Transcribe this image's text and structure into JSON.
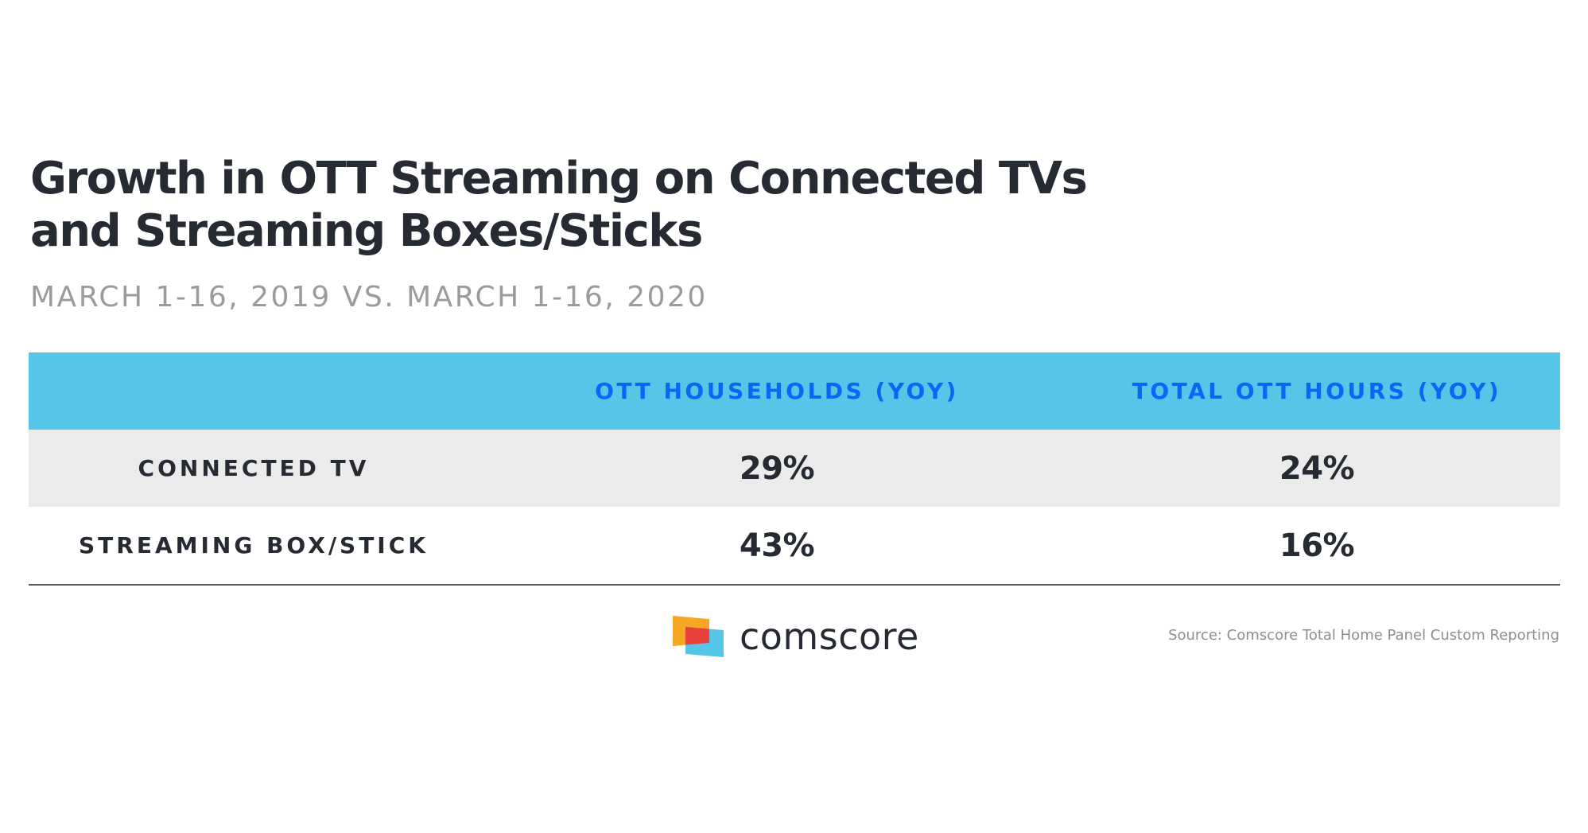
{
  "chart_data": {
    "type": "table",
    "title": "Growth in OTT Streaming on Connected TVs and Streaming Boxes/Sticks",
    "title_lines": [
      "Growth in OTT Streaming on Connected TVs",
      "and Streaming Boxes/Sticks"
    ],
    "subtitle": "MARCH 1-16, 2019 VS. MARCH 1-16, 2020",
    "columns": [
      "",
      "OTT HOUSEHOLDS (YOY)",
      "TOTAL OTT HOURS (YOY)"
    ],
    "rows": [
      {
        "label": "CONNECTED TV",
        "values": [
          "29%",
          "24%"
        ]
      },
      {
        "label": "STREAMING BOX/STICK",
        "values": [
          "43%",
          "16%"
        ]
      }
    ],
    "source": "Source: Comscore Total Home Panel Custom Reporting"
  },
  "branding": {
    "logo_text": "comscore",
    "logo_icon": "comscore-flag-icon"
  },
  "colors": {
    "header_bg": "#55c5e8",
    "header_text": "#0a66f5",
    "shaded_row": "#ebebeb",
    "text_dark": "#262a33",
    "subtitle": "#9b9b9b",
    "logo_orange": "#f5a623",
    "logo_red": "#e8403a",
    "logo_blue": "#55c5e8"
  }
}
